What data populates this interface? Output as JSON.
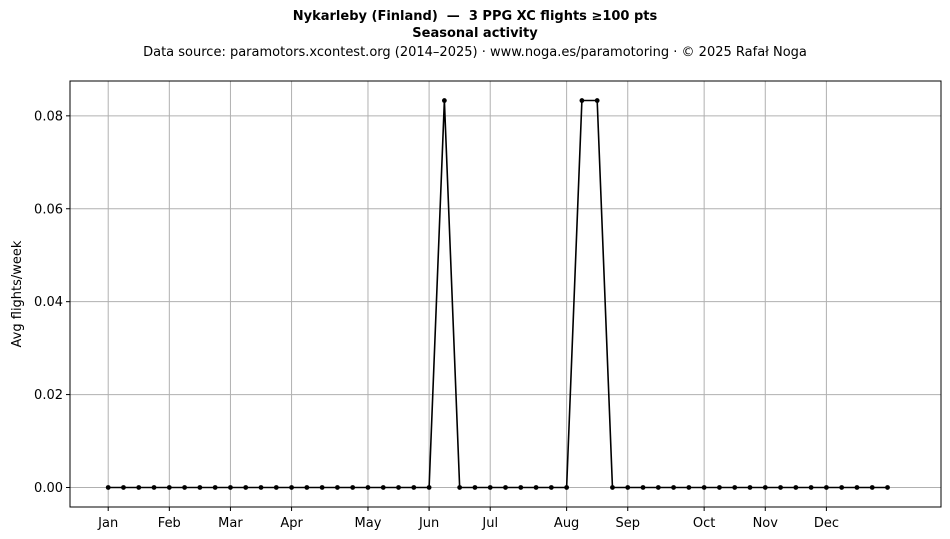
{
  "titles": {
    "line1": "Nykarleby (Finland)  —  3 PPG XC flights ≥100 pts",
    "line2": "Seasonal activity",
    "line3": "Data source: paramotors.xcontest.org (2014–2025)  ·  www.noga.es/paramotoring  ·  © 2025 Rafał Noga"
  },
  "chart_data": {
    "type": "line",
    "title": "Nykarleby (Finland)  —  3 PPG XC flights ≥100 pts",
    "subtitle": "Seasonal activity",
    "xlabel": "",
    "ylabel": "Avg flights/week",
    "xlim": [
      -2.5,
      54.5
    ],
    "ylim": [
      -0.0042,
      0.0875
    ],
    "grid": true,
    "x_ticks": [
      {
        "label": "Jan",
        "x": 0
      },
      {
        "label": "Feb",
        "x": 4
      },
      {
        "label": "Mar",
        "x": 8
      },
      {
        "label": "Apr",
        "x": 12
      },
      {
        "label": "May",
        "x": 17
      },
      {
        "label": "Jun",
        "x": 21
      },
      {
        "label": "Jul",
        "x": 25
      },
      {
        "label": "Aug",
        "x": 30
      },
      {
        "label": "Sep",
        "x": 34
      },
      {
        "label": "Oct",
        "x": 39
      },
      {
        "label": "Nov",
        "x": 43
      },
      {
        "label": "Dec",
        "x": 47
      }
    ],
    "y_ticks": [
      "0.00",
      "0.02",
      "0.04",
      "0.06",
      "0.08"
    ],
    "series": [
      {
        "color": "#000000",
        "x": [
          0,
          1,
          2,
          3,
          4,
          5,
          6,
          7,
          8,
          9,
          10,
          11,
          12,
          13,
          14,
          15,
          16,
          17,
          18,
          19,
          20,
          21,
          22,
          23,
          24,
          25,
          26,
          27,
          28,
          29,
          30,
          31,
          32,
          33,
          34,
          35,
          36,
          37,
          38,
          39,
          40,
          41,
          42,
          43,
          44,
          45,
          46,
          47,
          48,
          49,
          50,
          51
        ],
        "values": [
          0,
          0,
          0,
          0,
          0,
          0,
          0,
          0,
          0,
          0,
          0,
          0,
          0,
          0,
          0,
          0,
          0,
          0,
          0,
          0,
          0,
          0,
          0.0833,
          0,
          0,
          0,
          0,
          0,
          0,
          0,
          0,
          0.0833,
          0.0833,
          0,
          0,
          0,
          0,
          0,
          0,
          0,
          0,
          0,
          0,
          0,
          0,
          0,
          0,
          0,
          0,
          0,
          0,
          0
        ]
      }
    ]
  }
}
